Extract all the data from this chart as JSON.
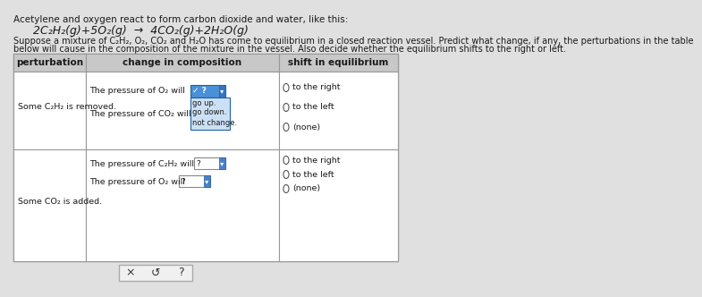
{
  "bg_color": "#e0e0e0",
  "title_text": "Acetylene and oxygen react to form carbon dioxide and water, like this:",
  "equation": "2C₂H₂(g)+5O₂(g)  →  4CO₂(g)+2H₂O(g)",
  "paragraph1": "Suppose a mixture of C₂H₂, O₂, CO₂ and H₂O has come to equilibrium in a closed reaction vessel. Predict what change, if any, the perturbations in the table",
  "paragraph2": "below will cause in the composition of the mixture in the vessel. Also decide whether the equilibrium shifts to the right or left.",
  "col_headers": [
    "perturbation",
    "change in composition",
    "shift in equilibrium"
  ],
  "row1_pert": "Some C₂H₂ is removed.",
  "row1_change_lines": [
    "The pressure of O₂ will",
    "The pressure of CO₂ will"
  ],
  "row1_dropdown_label": "✓ ?",
  "row1_dropdown_items": [
    "go up.",
    "go down.",
    "not change."
  ],
  "row1_shift": [
    "to the right",
    "to the left",
    "(none)"
  ],
  "row2_pert": "Some CO₂ is added.",
  "row2_change_lines": [
    "The pressure of C₂H₂ will",
    "The pressure of O₂ will"
  ],
  "row2_dropdown_label": "?",
  "row2_shift": [
    "to the right",
    "to the left",
    "(none)"
  ],
  "bottom_bar_symbols": [
    "×",
    "↺",
    "?"
  ],
  "dropdown_bg_blue": "#4a90d9",
  "dropdown_menu_bg": "#cce0f5",
  "header_bg": "#c8c8c8",
  "border_color": "#999999",
  "radio_color": "#555555",
  "text_color": "#1a1a1a"
}
